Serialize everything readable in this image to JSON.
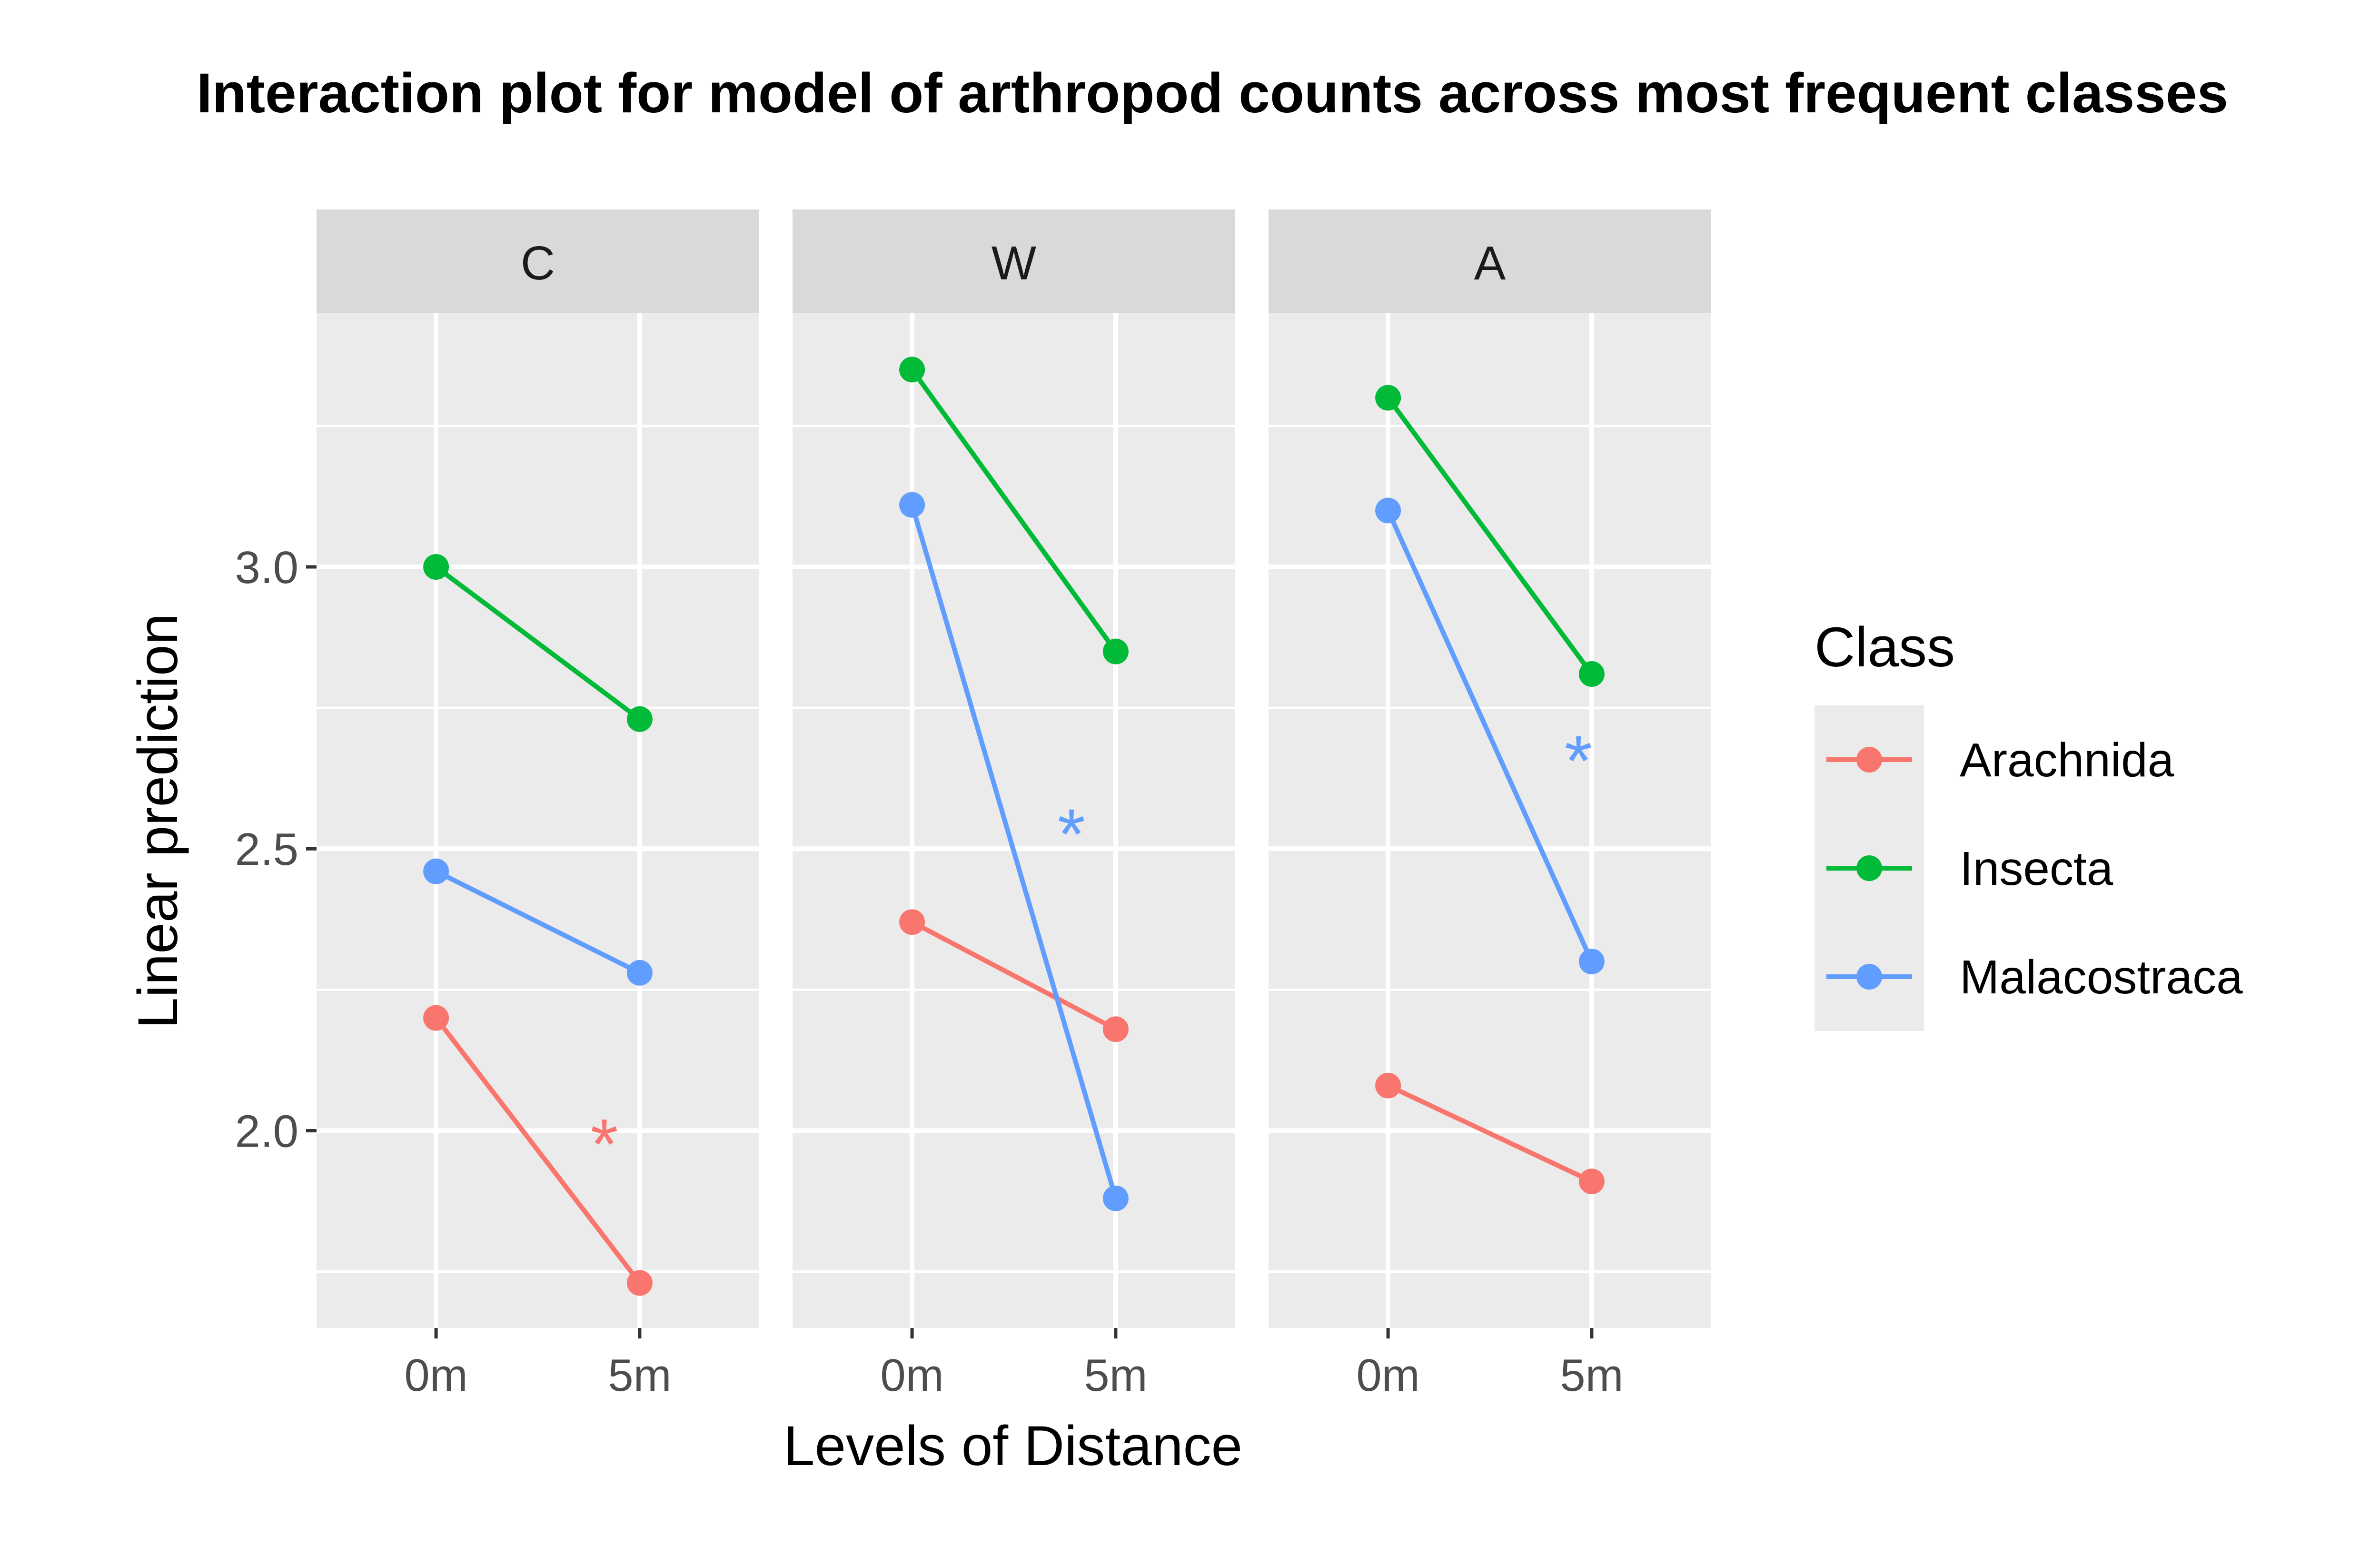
{
  "chart_data": {
    "type": "line",
    "title": "Interaction plot for model of arthropod counts across most frequent classes",
    "xlabel": "Levels of Distance",
    "ylabel": "Linear prediction",
    "x_categories": [
      "0m",
      "5m"
    ],
    "ylim": [
      1.65,
      3.45
    ],
    "y_ticks": [
      2.0,
      2.5,
      3.0
    ],
    "y_tick_labels": [
      "2.0",
      "2.5",
      "3.0"
    ],
    "y_minor_ticks": [
      1.75,
      2.25,
      2.75,
      3.25
    ],
    "grid": true,
    "legend": {
      "title": "Class",
      "placement": "right"
    },
    "series_colors": {
      "Arachnida": "#F8766D",
      "Insecta": "#00BA38",
      "Malacostraca": "#619CFF"
    },
    "panels": [
      {
        "label": "C",
        "series": [
          {
            "name": "Arachnida",
            "values": [
              2.2,
              1.73
            ]
          },
          {
            "name": "Insecta",
            "values": [
              3.0,
              2.73
            ]
          },
          {
            "name": "Malacostraca",
            "values": [
              2.46,
              2.28
            ]
          }
        ],
        "annotations": [
          {
            "text": "*",
            "x": 0.65,
            "y": 2.0,
            "series": "Arachnida"
          }
        ]
      },
      {
        "label": "W",
        "series": [
          {
            "name": "Arachnida",
            "values": [
              2.37,
              2.18
            ]
          },
          {
            "name": "Insecta",
            "values": [
              3.35,
              2.85
            ]
          },
          {
            "name": "Malacostraca",
            "values": [
              3.11,
              1.88
            ]
          }
        ],
        "annotations": [
          {
            "text": "*",
            "x": 0.63,
            "y": 2.55,
            "series": "Malacostraca"
          }
        ]
      },
      {
        "label": "A",
        "series": [
          {
            "name": "Arachnida",
            "values": [
              2.08,
              1.91
            ]
          },
          {
            "name": "Insecta",
            "values": [
              3.3,
              2.81
            ]
          },
          {
            "name": "Malacostraca",
            "values": [
              3.1,
              2.3
            ]
          }
        ],
        "annotations": [
          {
            "text": "*",
            "x": 0.7,
            "y": 2.68,
            "series": "Malacostraca"
          }
        ]
      }
    ]
  }
}
